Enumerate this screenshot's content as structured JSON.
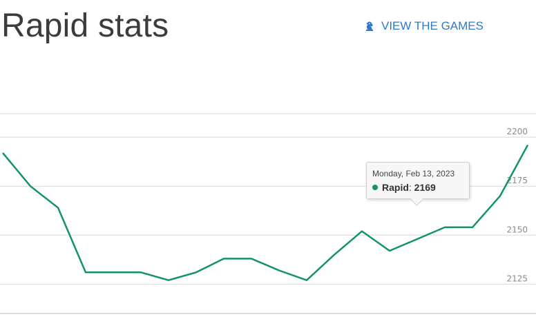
{
  "header": {
    "title": "Rapid stats",
    "view_games_label": "VIEW THE GAMES",
    "view_games_icon": "knight-icon"
  },
  "colors": {
    "line": "#11926b",
    "link": "#2f78c6",
    "grid": "#d9d9d9",
    "tick_text": "#8a8a8a"
  },
  "chart_data": {
    "type": "line",
    "title": "",
    "xlabel": "",
    "ylabel": "",
    "ylim": [
      2110,
      2212
    ],
    "y_ticks": [
      2125,
      2150,
      2175,
      2200
    ],
    "y_tick_labels": [
      "2125",
      "2150",
      "2175",
      "2200"
    ],
    "series": [
      {
        "name": "Rapid",
        "values": [
          2192,
          2175,
          2164,
          2131,
          2131,
          2131,
          2127,
          2131,
          2138,
          2138,
          2132,
          2127,
          2140,
          2152,
          2142,
          2148,
          2154,
          2154,
          2170,
          2196
        ]
      }
    ]
  },
  "tooltip": {
    "date": "Monday, Feb 13, 2023",
    "series": "Rapid",
    "value": "2169"
  }
}
